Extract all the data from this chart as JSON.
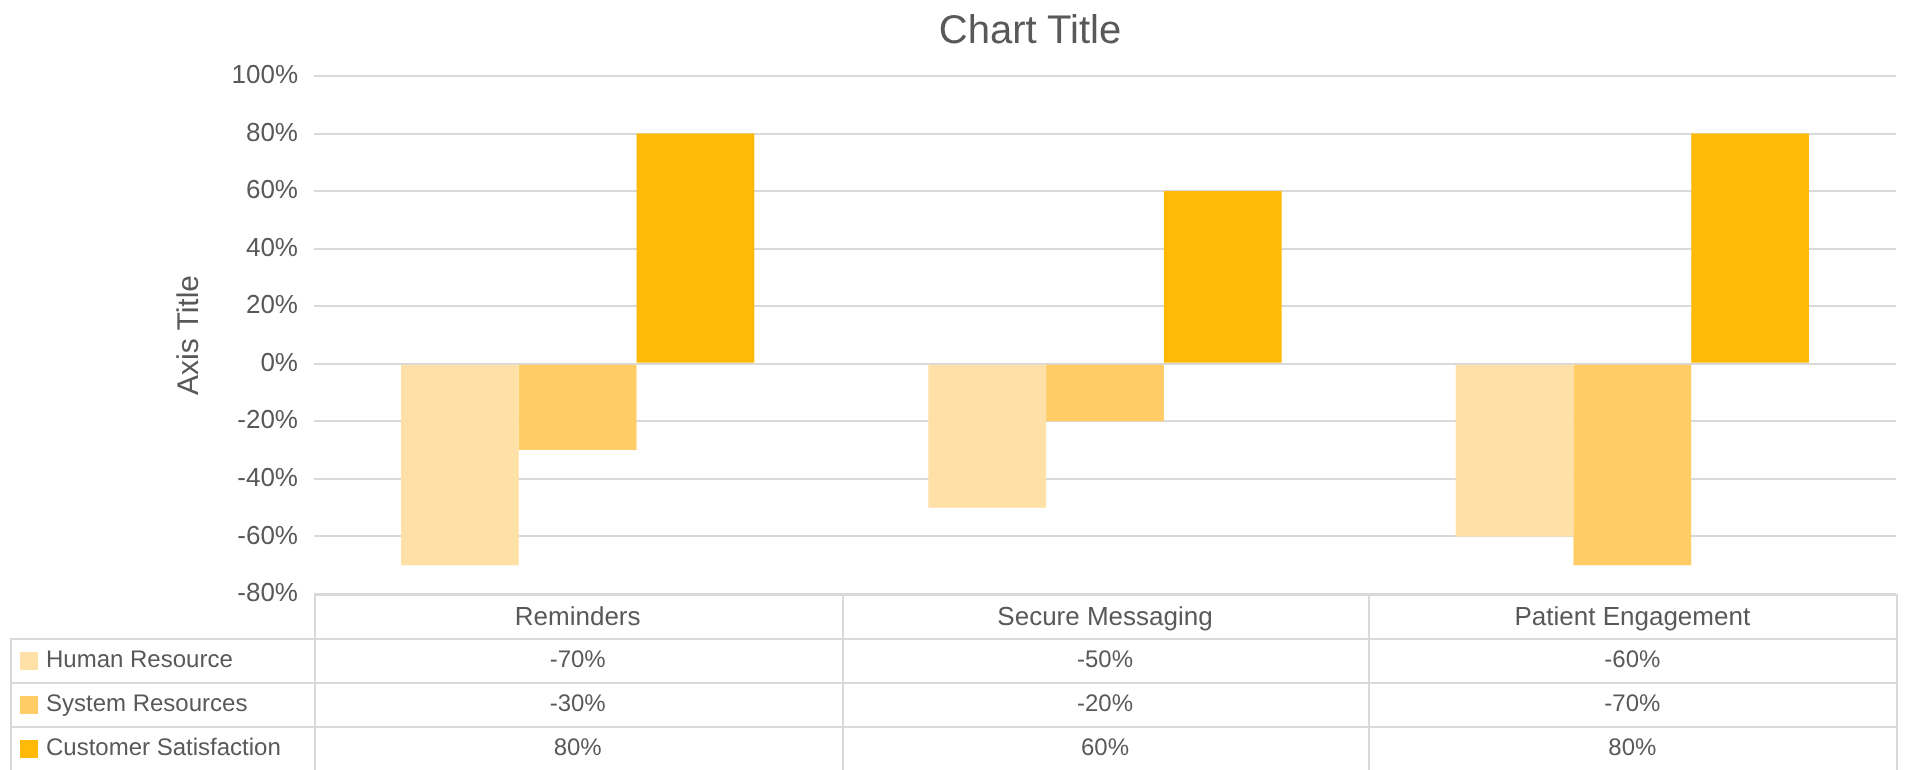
{
  "chart_data": {
    "type": "bar",
    "title": "Chart Title",
    "ylabel": "Axis Title",
    "categories": [
      "Reminders",
      "Secure Messaging",
      "Patient Engagement"
    ],
    "series": [
      {
        "name": "Human Resource",
        "color": "#ffe0a6",
        "values": [
          -70,
          -50,
          -60
        ],
        "value_labels": [
          "-70%",
          "-50%",
          "-60%"
        ]
      },
      {
        "name": "System Resources",
        "color": "#ffcc66",
        "values": [
          -30,
          -20,
          -70
        ],
        "value_labels": [
          "-30%",
          "-20%",
          "-70%"
        ]
      },
      {
        "name": "Customer Satisfaction",
        "color": "#ffba08",
        "values": [
          80,
          60,
          80
        ],
        "value_labels": [
          "80%",
          "60%",
          "80%"
        ]
      }
    ],
    "ylim": [
      -80,
      100
    ],
    "yticks": [
      {
        "value": -80,
        "label": "-80%"
      },
      {
        "value": -60,
        "label": "-60%"
      },
      {
        "value": -40,
        "label": "-40%"
      },
      {
        "value": -20,
        "label": "-20%"
      },
      {
        "value": 0,
        "label": "0%"
      },
      {
        "value": 20,
        "label": "20%"
      },
      {
        "value": 40,
        "label": "40%"
      },
      {
        "value": 60,
        "label": "60%"
      },
      {
        "value": 80,
        "label": "80%"
      },
      {
        "value": 100,
        "label": "100%"
      }
    ],
    "grid": "y",
    "legend": "bottom"
  }
}
